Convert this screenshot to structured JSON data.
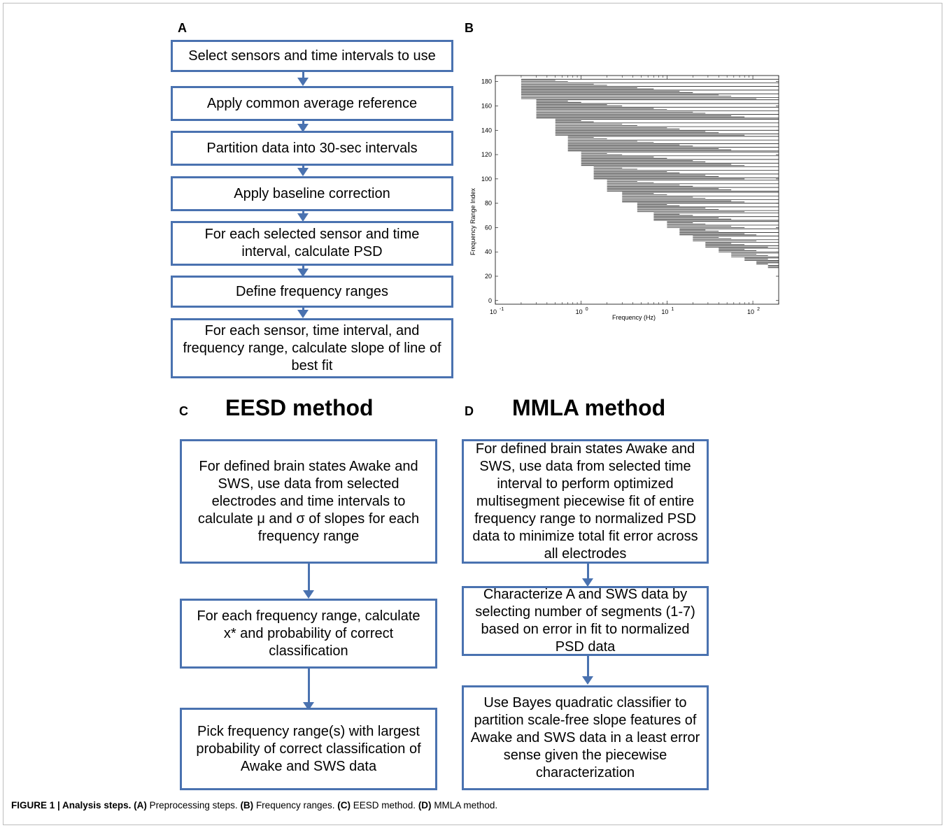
{
  "panels": {
    "a": "A",
    "b": "B",
    "c": "C",
    "d": "D"
  },
  "flow_a": [
    "Select sensors and time intervals to use",
    "Apply common average reference",
    "Partition data into 30-sec intervals",
    "Apply baseline correction",
    "For each selected sensor and time interval, calculate PSD",
    "Define frequency ranges",
    "For each sensor, time interval, and frequency range, calculate slope of line of best fit"
  ],
  "method_c": {
    "title": "EESD method",
    "steps": [
      "For defined brain states Awake and SWS, use data from selected electrodes and time intervals to calculate μ and σ of slopes for each frequency range",
      "For each frequency range,  calculate x* and probability of correct classification",
      "Pick frequency range(s) with largest probability of correct classification of Awake and SWS data"
    ]
  },
  "method_d": {
    "title": "MMLA method",
    "steps": [
      "For defined brain states Awake and SWS, use data from selected time interval to perform optimized multisegment piecewise fit of entire frequency range to normalized PSD data to minimize total fit error across all electrodes",
      "Characterize A and SWS data by selecting number of segments (1-7) based on error in fit to normalized PSD data",
      "Use Bayes quadratic classifier to partition scale-free slope features of Awake  and SWS data in a least error sense given the piecewise characterization"
    ]
  },
  "caption": {
    "figure": "FIGURE 1 | Analysis steps.",
    "a_ref": "(A)",
    "a_text": " Preprocessing steps. ",
    "b_ref": "(B)",
    "b_text": " Frequency ranges. ",
    "c_ref": "(C)",
    "c_text": " EESD method. ",
    "d_ref": "(D)",
    "d_text": " MMLA method."
  },
  "chart_data": {
    "type": "line",
    "xlabel": "Frequency (Hz)",
    "ylabel": "Frequency Range Index",
    "xscale": "log",
    "xlim": [
      0.1,
      200
    ],
    "ylim": [
      -3,
      185
    ],
    "xticks": [
      0.1,
      1,
      10,
      100
    ],
    "xtick_labels": [
      {
        "base": "10",
        "exp": "-1"
      },
      {
        "base": "10",
        "exp": "0"
      },
      {
        "base": "10",
        "exp": "1"
      },
      {
        "base": "10",
        "exp": "2"
      }
    ],
    "yticks": [
      0,
      20,
      40,
      60,
      80,
      100,
      120,
      140,
      160,
      180
    ],
    "grid": false,
    "segment_starts_hz": [
      0.2,
      0.3,
      0.5,
      0.7,
      1,
      1.4,
      2,
      3,
      4.5,
      7,
      10,
      14,
      20,
      28,
      40,
      56,
      80,
      110,
      150,
      200
    ],
    "segment_end_hz": 200,
    "segment_count": 183,
    "line_color": "#000000"
  }
}
